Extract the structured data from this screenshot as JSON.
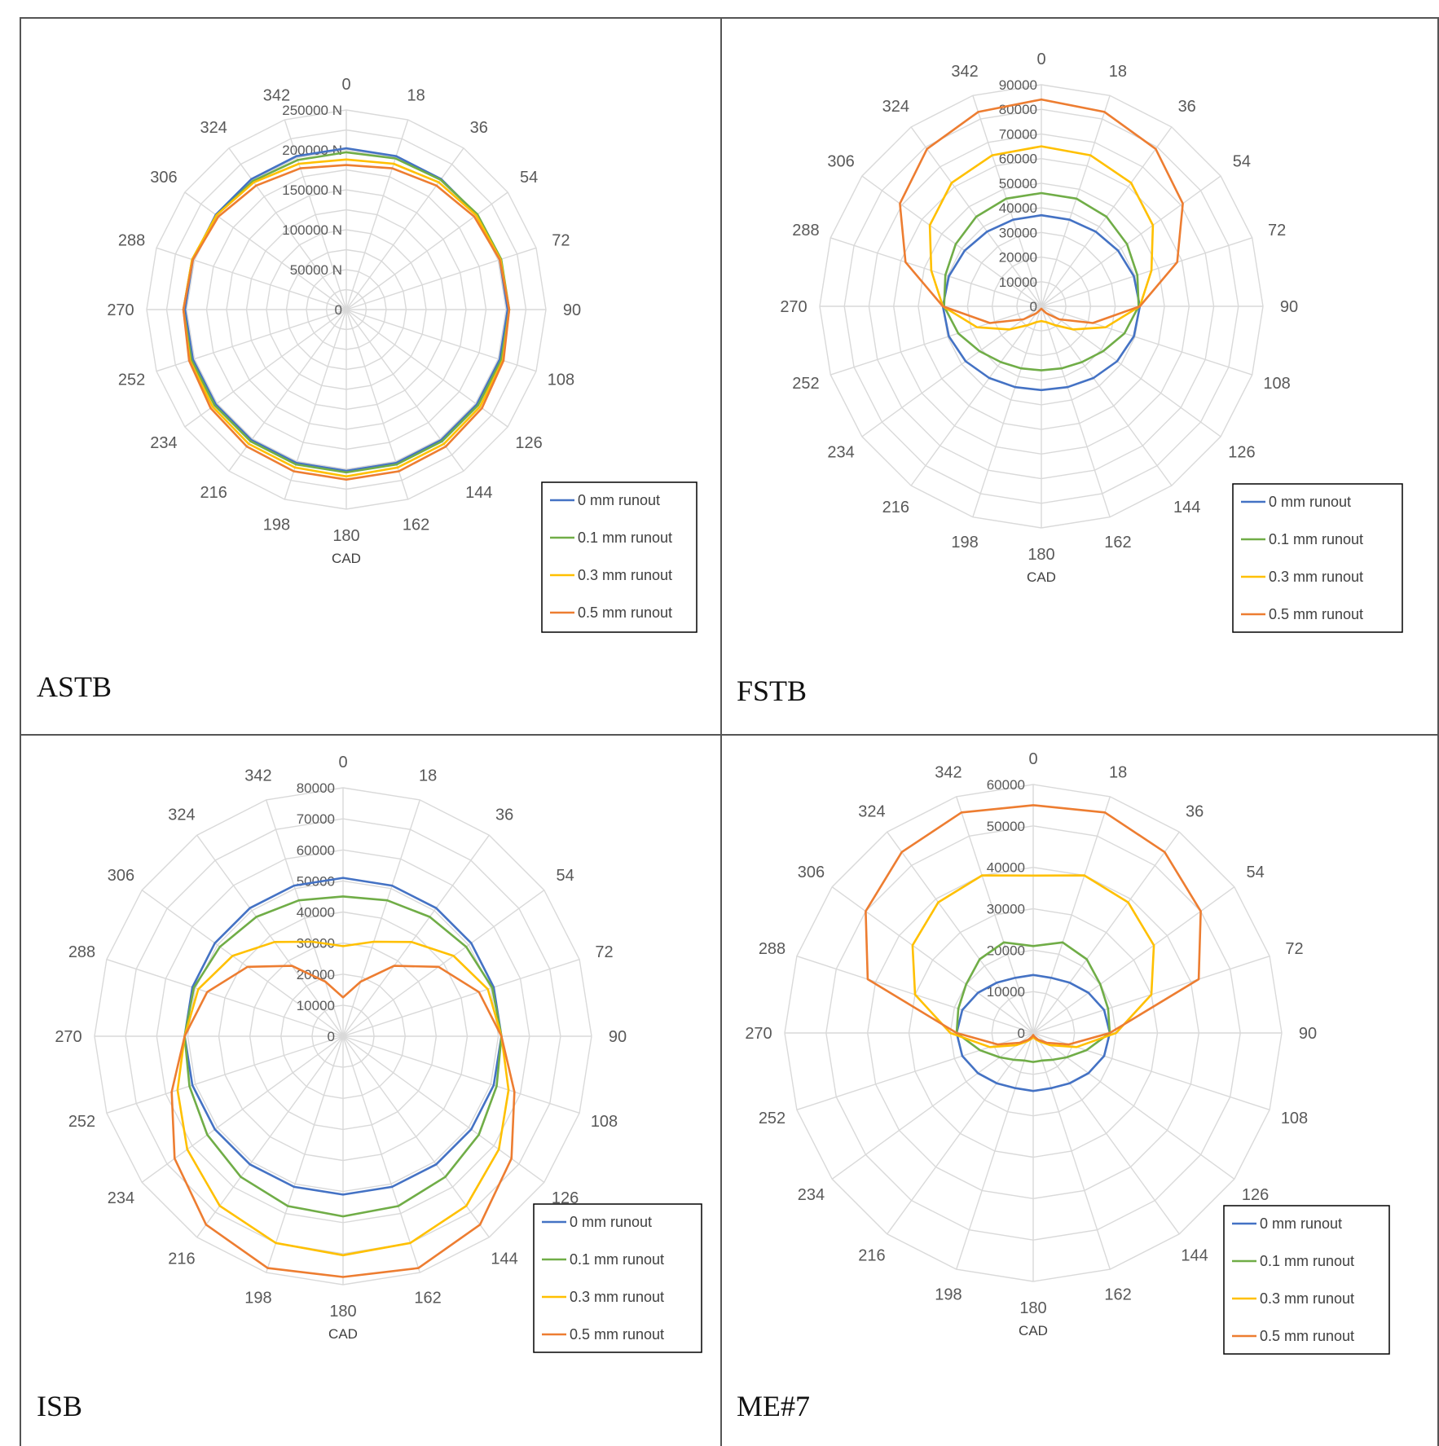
{
  "colors": {
    "series_0mm": "#4472c4",
    "series_0_1mm": "#70ad47",
    "series_0_3mm": "#ffc000",
    "series_0_5mm": "#ed7d31",
    "grid": "#d9d9d9",
    "frame": "#555555"
  },
  "chart_data": [
    {
      "type": "radar",
      "panel_label": "ASTB",
      "axis_title": "CAD",
      "angles": [
        0,
        18,
        36,
        54,
        72,
        90,
        108,
        126,
        144,
        162,
        180,
        198,
        216,
        234,
        252,
        270,
        288,
        306,
        324,
        342
      ],
      "tick_labels": [
        "0",
        "50000 N",
        "100000 N",
        "150000 N",
        "200000 N",
        "250000 N"
      ],
      "rmax": 250000,
      "grid_step": 25000,
      "legend": [
        "0  mm runout",
        "0.1 mm runout",
        "0.3 mm runout",
        "0.5 mm runout"
      ],
      "legend_position": "bottom-right",
      "series": [
        {
          "name": "0  mm runout",
          "color": "#4472c4",
          "values": [
            202000,
            202000,
            202000,
            202000,
            202000,
            202000,
            202000,
            202000,
            202000,
            202000,
            202000,
            202000,
            202000,
            202000,
            202000,
            202000,
            202000,
            202000,
            202000,
            202000
          ]
        },
        {
          "name": "0.1 mm runout",
          "color": "#70ad47",
          "values": [
            197000,
            199000,
            201000,
            203000,
            204000,
            204000,
            204000,
            204000,
            204000,
            204000,
            204000,
            204000,
            204000,
            204000,
            204000,
            204000,
            203000,
            201000,
            199000,
            197000
          ]
        },
        {
          "name": "0.3 mm runout",
          "color": "#ffc000",
          "values": [
            188000,
            192000,
            197000,
            201000,
            203000,
            204000,
            206000,
            207000,
            208000,
            208000,
            209000,
            208000,
            208000,
            207000,
            206000,
            204000,
            203000,
            201000,
            197000,
            192000
          ]
        },
        {
          "name": "0.5 mm runout",
          "color": "#ed7d31",
          "values": [
            181000,
            186000,
            192000,
            198000,
            202000,
            204000,
            207000,
            210000,
            212000,
            213000,
            213000,
            213000,
            212000,
            210000,
            207000,
            204000,
            202000,
            198000,
            192000,
            186000
          ]
        }
      ]
    },
    {
      "type": "radar",
      "panel_label": "FSTB",
      "axis_title": "CAD",
      "angles": [
        0,
        18,
        36,
        54,
        72,
        90,
        108,
        126,
        144,
        162,
        180,
        198,
        216,
        234,
        252,
        270,
        288,
        306,
        324,
        342
      ],
      "tick_labels": [
        "0",
        "10000",
        "20000",
        "30000",
        "40000",
        "50000",
        "60000",
        "70000",
        "80000",
        "90000"
      ],
      "rmax": 90000,
      "grid_step": 10000,
      "legend": [
        "0  mm runout",
        "0.1 mm runout",
        "0.3 mm runout",
        "0.5 mm runout"
      ],
      "legend_position": "bottom-right",
      "series": [
        {
          "name": "0  mm runout",
          "color": "#4472c4",
          "values": [
            37000,
            37000,
            37500,
            38500,
            39500,
            40000,
            39500,
            38000,
            36000,
            34500,
            34000,
            34500,
            36000,
            38000,
            39500,
            40000,
            39500,
            38500,
            37500,
            37000
          ]
        },
        {
          "name": "0.1 mm runout",
          "color": "#70ad47",
          "values": [
            46000,
            46000,
            45000,
            43000,
            41000,
            39500,
            35500,
            31000,
            28000,
            26500,
            26000,
            26500,
            28000,
            31000,
            35500,
            39500,
            41000,
            43000,
            45000,
            46000
          ]
        },
        {
          "name": "0.3 mm runout",
          "color": "#ffc000",
          "values": [
            65000,
            64500,
            62000,
            56000,
            47000,
            40000,
            27500,
            16000,
            9500,
            6800,
            6000,
            6800,
            9500,
            16000,
            27500,
            40000,
            47000,
            56000,
            62000,
            64500
          ]
        },
        {
          "name": "0.5 mm runout",
          "color": "#ed7d31",
          "values": [
            84000,
            83000,
            79000,
            71000,
            58000,
            40000,
            22000,
            9000,
            3500,
            1500,
            1000,
            1500,
            3500,
            9000,
            22000,
            40000,
            58000,
            71000,
            79000,
            83000
          ]
        }
      ]
    },
    {
      "type": "radar",
      "panel_label": "ISB",
      "axis_title": "CAD",
      "angles": [
        0,
        18,
        36,
        54,
        72,
        90,
        108,
        126,
        144,
        162,
        180,
        198,
        216,
        234,
        252,
        270,
        288,
        306,
        324,
        342
      ],
      "tick_labels": [
        "0",
        "10000",
        "20000",
        "30000",
        "40000",
        "50000",
        "60000",
        "70000",
        "80000"
      ],
      "rmax": 80000,
      "grid_step": 10000,
      "legend": [
        "0  mm runout",
        "0.1 mm runout",
        "0.3 mm runout",
        "0.5 mm runout"
      ],
      "legend_position": "bottom-right",
      "series": [
        {
          "name": "0  mm runout",
          "color": "#4472c4",
          "values": [
            51000,
            51000,
            51000,
            51000,
            51000,
            51000,
            51000,
            51000,
            51000,
            51000,
            51000,
            51000,
            51000,
            51000,
            51000,
            51000,
            51000,
            51000,
            51000,
            51000
          ]
        },
        {
          "name": "0.1 mm runout",
          "color": "#70ad47",
          "values": [
            45000,
            46000,
            47500,
            49000,
            50500,
            51000,
            52000,
            54000,
            56000,
            57500,
            58000,
            57500,
            56000,
            54000,
            52000,
            51000,
            50500,
            49000,
            47500,
            46000
          ]
        },
        {
          "name": "0.3 mm runout",
          "color": "#ffc000",
          "values": [
            29000,
            32000,
            37500,
            44000,
            49000,
            51000,
            56000,
            62000,
            67500,
            70000,
            70500,
            70000,
            67500,
            62000,
            56000,
            51000,
            49000,
            44000,
            37500,
            32000
          ]
        },
        {
          "name": "0.5 mm runout",
          "color": "#ed7d31",
          "values": [
            12500,
            18500,
            28000,
            38000,
            46000,
            51000,
            58000,
            67000,
            75000,
            78500,
            77500,
            78500,
            75000,
            67000,
            58000,
            51000,
            46000,
            38000,
            28000,
            18500
          ]
        }
      ]
    },
    {
      "type": "radar",
      "panel_label": "ME#7",
      "axis_title": "CAD",
      "angles": [
        0,
        18,
        36,
        54,
        72,
        90,
        108,
        126,
        144,
        162,
        180,
        198,
        216,
        234,
        252,
        270,
        288,
        306,
        324,
        342
      ],
      "tick_labels": [
        "0",
        "10000",
        "20000",
        "30000",
        "40000",
        "50000",
        "60000"
      ],
      "rmax": 60000,
      "grid_step": 10000,
      "legend": [
        "0  mm runout",
        "0.1 mm runout",
        "0.3 mm runout",
        "0.5 mm runout"
      ],
      "legend_position": "bottom-right",
      "series": [
        {
          "name": "0  mm runout",
          "color": "#4472c4",
          "values": [
            14000,
            14000,
            15000,
            16500,
            18000,
            18500,
            18000,
            16500,
            15000,
            14000,
            14000,
            14000,
            15000,
            16500,
            18000,
            18500,
            18000,
            16500,
            15000,
            14000
          ]
        },
        {
          "name": "0.1 mm runout",
          "color": "#70ad47",
          "values": [
            21000,
            23000,
            22000,
            20000,
            19000,
            18500,
            13500,
            10000,
            8000,
            7000,
            7000,
            7000,
            8000,
            10000,
            13500,
            18500,
            19000,
            20000,
            22000,
            23000
          ]
        },
        {
          "name": "0.3 mm runout",
          "color": "#ffc000",
          "values": [
            38000,
            40000,
            39000,
            36000,
            30000,
            20000,
            11000,
            5000,
            2500,
            1500,
            1000,
            1500,
            2500,
            5000,
            11000,
            20000,
            30000,
            36000,
            39000,
            40000
          ]
        },
        {
          "name": "0.5 mm runout",
          "color": "#ed7d31",
          "values": [
            55000,
            56000,
            54000,
            50000,
            42000,
            18500,
            9000,
            4000,
            2000,
            1000,
            500,
            1000,
            2000,
            4000,
            9000,
            18500,
            42000,
            50000,
            54000,
            56000
          ]
        }
      ]
    }
  ]
}
